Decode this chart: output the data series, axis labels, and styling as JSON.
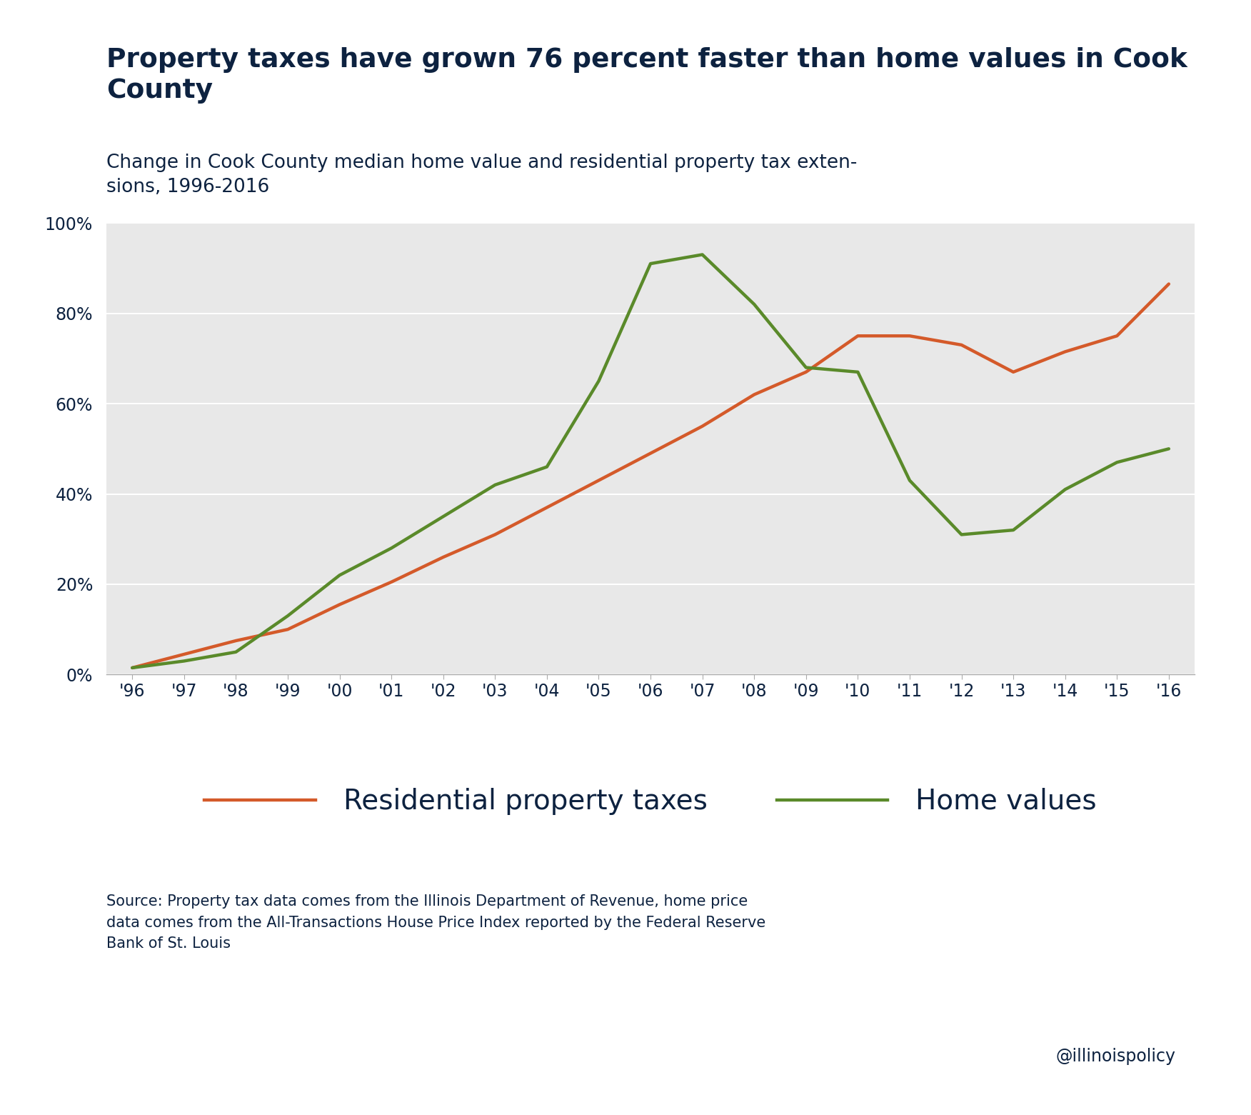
{
  "title": "Property taxes have grown 76 percent faster than home values in Cook\nCounty",
  "subtitle": "Change in Cook County median home value and residential property tax exten-\nsions, 1996-2016",
  "source_text": "Source: Property tax data comes from the Illinois Department of Revenue, home price\ndata comes from the All-Transactions House Price Index reported by the Federal Reserve\nBank of St. Louis",
  "watermark": "@illinoispolicy",
  "title_color": "#0d2240",
  "subtitle_color": "#0d2240",
  "source_color": "#0d2240",
  "background_color": "#ffffff",
  "plot_bg_color": "#e8e8e8",
  "years": [
    1996,
    1997,
    1998,
    1999,
    2000,
    2001,
    2002,
    2003,
    2004,
    2005,
    2006,
    2007,
    2008,
    2009,
    2010,
    2011,
    2012,
    2013,
    2014,
    2015,
    2016
  ],
  "property_taxes": [
    1.5,
    4.5,
    7.5,
    10.0,
    15.5,
    20.5,
    26.0,
    31.0,
    37.0,
    43.0,
    49.0,
    55.0,
    62.0,
    67.0,
    75.0,
    75.0,
    73.0,
    67.0,
    71.5,
    75.0,
    86.5
  ],
  "home_values": [
    1.5,
    3.0,
    5.0,
    13.0,
    22.0,
    28.0,
    35.0,
    42.0,
    46.0,
    65.0,
    91.0,
    93.0,
    82.0,
    68.0,
    67.0,
    43.0,
    31.0,
    32.0,
    41.0,
    47.0,
    50.0
  ],
  "tax_color": "#d45a2a",
  "home_color": "#5a8a2a",
  "tax_label": "Residential property taxes",
  "home_label": "Home values",
  "ylim": [
    0,
    100
  ],
  "yticks": [
    0,
    20,
    40,
    60,
    80,
    100
  ],
  "line_width": 3.2
}
